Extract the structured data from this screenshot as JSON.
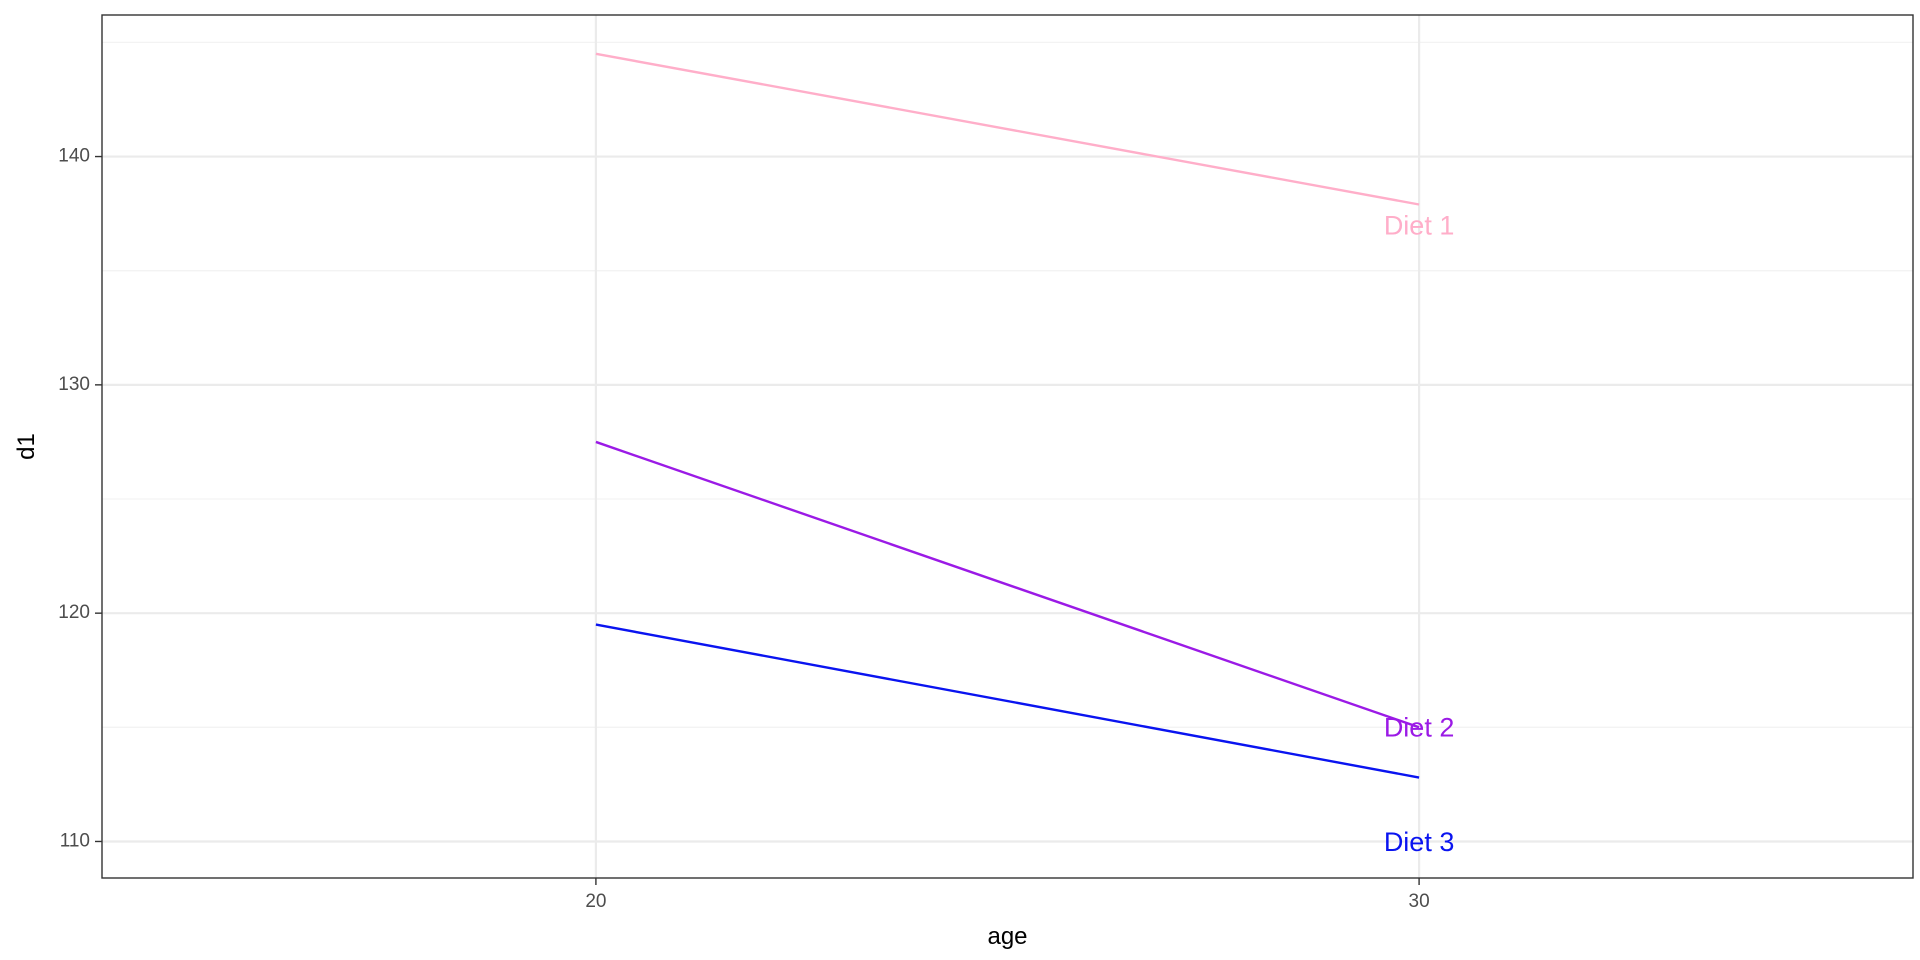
{
  "chart_data": {
    "type": "line",
    "title": "",
    "xlabel": "age",
    "ylabel": "d1",
    "x": [
      20,
      30
    ],
    "xlim": [
      14,
      36
    ],
    "ylim": [
      108.4,
      146.2
    ],
    "x_ticks": [
      20,
      30
    ],
    "y_ticks": [
      110,
      120,
      130,
      140
    ],
    "y_minor_ticks": [
      115,
      125,
      135,
      145
    ],
    "grid": true,
    "legend": "none",
    "series": [
      {
        "name": "Diet 1",
        "values": [
          144.5,
          137.9
        ],
        "color": "#FFAEC9"
      },
      {
        "name": "Diet 2",
        "values": [
          127.5,
          115.0
        ],
        "color": "#9B1AE6"
      },
      {
        "name": "Diet 3",
        "values": [
          119.5,
          112.8
        ],
        "color": "#0A14F0"
      }
    ],
    "annotations": [
      {
        "text": "Diet 1",
        "x": 30,
        "y": 136.9,
        "color": "#FFAEC9"
      },
      {
        "text": "Diet 2",
        "x": 30,
        "y": 114.9,
        "color": "#9B1AE6"
      },
      {
        "text": "Diet 3",
        "x": 30,
        "y": 109.9,
        "color": "#0A14F0"
      }
    ],
    "colors": {
      "panel_border": "#333333",
      "grid_major": "#EBEBEB",
      "grid_minor": "#F3F3F3",
      "tick_text": "#4D4D4D",
      "axis_title": "#000000",
      "background": "#FFFFFF"
    }
  }
}
